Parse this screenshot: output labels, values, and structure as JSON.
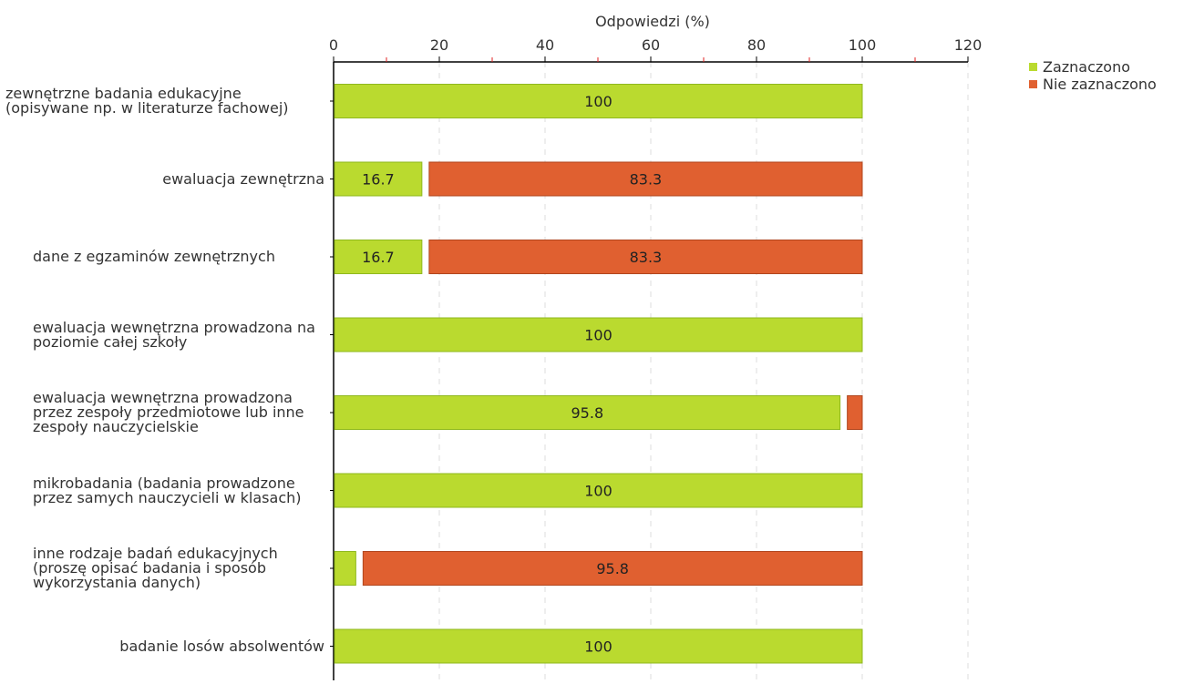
{
  "chart_data": {
    "type": "bar",
    "orientation": "horizontal",
    "stacked": true,
    "xlabel": "Odpowiedzi (%)",
    "xlim": [
      0,
      120
    ],
    "xticks": [
      0,
      20,
      40,
      60,
      80,
      100,
      120
    ],
    "grid": true,
    "legend_position": "top-right",
    "categories": [
      "zewnętrzne badania edukacyjne (opisywane np. w literaturze fachowej)",
      "ewaluacja zewnętrzna",
      "dane z egzaminów zewnętrznych",
      "ewaluacja wewnętrzna prowadzona na poziomie całej szkoły",
      "ewaluacja wewnętrzna prowadzona przez zespoły przedmiotowe lub inne zespoły nauczycielskie",
      "mikrobadania (badania prowadzone przez samych nauczycieli w klasach)",
      "inne rodzaje badań edukacyjnych (proszę opisać badania i sposób wykorzystania danych)",
      "badanie losów absolwentów"
    ],
    "series": [
      {
        "name": "Zaznaczono",
        "color": "#bada2f",
        "values": [
          100,
          16.7,
          16.7,
          100,
          95.8,
          100,
          4.2,
          100
        ],
        "labels": [
          "100",
          "16.7",
          "16.7",
          "100",
          "95.8",
          "100",
          "",
          "100"
        ]
      },
      {
        "name": "Nie zaznaczono",
        "color": "#e06030",
        "values": [
          0,
          83.3,
          83.3,
          0,
          4.2,
          0,
          95.8,
          0
        ],
        "labels": [
          "",
          "83.3",
          "83.3",
          "",
          "",
          "",
          "95.8",
          ""
        ]
      }
    ]
  }
}
